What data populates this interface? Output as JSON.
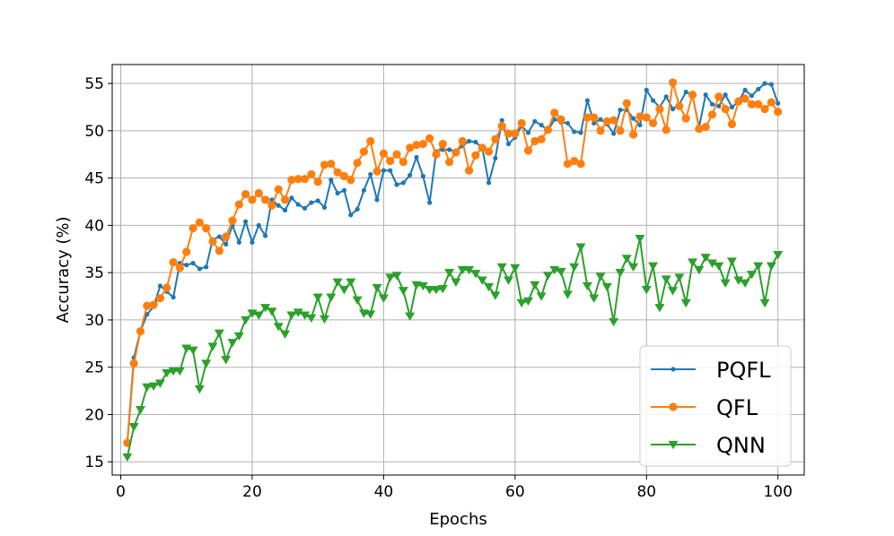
{
  "chart_data": {
    "type": "line",
    "title": "",
    "xlabel": "Epochs",
    "ylabel": "Accuracy (%)",
    "xlim": [
      -1.3,
      104.0
    ],
    "ylim": [
      13.6,
      57.0
    ],
    "xticks": [
      0,
      20,
      40,
      60,
      80,
      100
    ],
    "yticks": [
      15,
      20,
      25,
      30,
      35,
      40,
      45,
      50,
      55
    ],
    "grid": true,
    "legend_position": "lower-right",
    "x": [
      1,
      2,
      3,
      4,
      5,
      6,
      7,
      8,
      9,
      10,
      11,
      12,
      13,
      14,
      15,
      16,
      17,
      18,
      19,
      20,
      21,
      22,
      23,
      24,
      25,
      26,
      27,
      28,
      29,
      30,
      31,
      32,
      33,
      34,
      35,
      36,
      37,
      38,
      39,
      40,
      41,
      42,
      43,
      44,
      45,
      46,
      47,
      48,
      49,
      50,
      51,
      52,
      53,
      54,
      55,
      56,
      57,
      58,
      59,
      60,
      61,
      62,
      63,
      64,
      65,
      66,
      67,
      68,
      69,
      70,
      71,
      72,
      73,
      74,
      75,
      76,
      77,
      78,
      79,
      80,
      81,
      82,
      83,
      84,
      85,
      86,
      87,
      88,
      89,
      90,
      91,
      92,
      93,
      94,
      95,
      96,
      97,
      98,
      99,
      100
    ],
    "series": [
      {
        "name": "PQFL",
        "color": "#1f77b4",
        "marker": "dot",
        "values": [
          17.0,
          26.0,
          28.8,
          30.6,
          31.4,
          33.6,
          33.0,
          32.4,
          36.0,
          35.8,
          36.0,
          35.4,
          35.6,
          38.5,
          38.8,
          38.0,
          40.0,
          38.2,
          40.4,
          38.2,
          40.0,
          38.9,
          42.7,
          42.1,
          41.6,
          42.9,
          42.2,
          41.8,
          42.4,
          42.6,
          41.9,
          44.8,
          43.4,
          43.7,
          41.1,
          41.7,
          43.7,
          45.4,
          42.7,
          45.8,
          45.8,
          44.3,
          44.5,
          45.3,
          47.2,
          45.2,
          42.4,
          47.8,
          48.0,
          48.0,
          47.8,
          48.4,
          48.9,
          48.8,
          48.2,
          44.5,
          47.1,
          51.1,
          48.6,
          49.3,
          50.5,
          49.8,
          51.0,
          50.6,
          50.0,
          51.2,
          50.9,
          50.8,
          49.9,
          49.8,
          53.2,
          50.8,
          51.2,
          50.7,
          49.7,
          52.2,
          52.2,
          51.3,
          50.6,
          54.3,
          53.2,
          52.5,
          53.6,
          52.3,
          52.8,
          54.1,
          53.7,
          50.4,
          53.8,
          52.8,
          52.6,
          53.8,
          52.5,
          53.1,
          54.3,
          53.7,
          54.4,
          55.0,
          54.9,
          52.9
        ]
      },
      {
        "name": "QFL",
        "color": "#ff7f0e",
        "marker": "circle",
        "values": [
          17.0,
          25.4,
          28.8,
          31.5,
          31.6,
          32.3,
          33.4,
          36.1,
          35.5,
          37.2,
          39.7,
          40.3,
          39.7,
          38.3,
          37.3,
          38.8,
          40.5,
          42.2,
          43.3,
          42.7,
          43.4,
          42.7,
          42.1,
          43.8,
          42.7,
          44.8,
          44.9,
          44.9,
          45.4,
          44.6,
          46.4,
          46.5,
          45.6,
          45.2,
          44.8,
          46.6,
          47.8,
          48.9,
          45.7,
          47.6,
          46.8,
          47.5,
          46.7,
          48.2,
          48.5,
          48.6,
          49.2,
          47.5,
          48.6,
          46.7,
          47.7,
          48.9,
          45.8,
          47.4,
          48.2,
          47.8,
          49.1,
          50.5,
          49.7,
          49.7,
          50.8,
          47.9,
          48.9,
          49.1,
          50.1,
          51.9,
          51.2,
          46.5,
          46.8,
          46.5,
          51.4,
          51.4,
          50.0,
          51.0,
          51.1,
          50.0,
          52.9,
          49.6,
          51.5,
          51.4,
          50.8,
          52.3,
          50.1,
          55.1,
          52.6,
          51.3,
          53.8,
          50.2,
          50.4,
          51.7,
          53.6,
          52.3,
          50.7,
          53.1,
          53.4,
          52.8,
          52.8,
          52.3,
          53.0,
          52.0
        ]
      },
      {
        "name": "QNN",
        "color": "#2ca02c",
        "marker": "triangle-down",
        "values": [
          15.5,
          18.7,
          20.5,
          22.9,
          23.0,
          23.3,
          24.4,
          24.6,
          24.6,
          27.0,
          26.8,
          22.7,
          25.4,
          27.2,
          28.6,
          25.8,
          27.6,
          28.3,
          30.0,
          30.7,
          30.5,
          31.3,
          30.9,
          29.3,
          28.5,
          30.5,
          30.8,
          30.5,
          30.2,
          32.4,
          30.1,
          32.4,
          34.0,
          33.2,
          34.0,
          32.1,
          30.7,
          30.6,
          33.4,
          32.3,
          34.5,
          34.7,
          33.1,
          30.4,
          33.7,
          33.6,
          33.2,
          33.2,
          33.3,
          35.0,
          34.0,
          35.3,
          35.3,
          34.9,
          34.2,
          33.5,
          32.6,
          35.6,
          34.2,
          35.5,
          31.8,
          32.0,
          33.7,
          32.5,
          34.7,
          35.3,
          35.1,
          32.7,
          35.6,
          37.7,
          33.6,
          32.3,
          34.6,
          33.5,
          29.8,
          35.0,
          36.5,
          35.6,
          38.6,
          33.2,
          35.7,
          31.3,
          34.3,
          33.1,
          34.5,
          31.8,
          36.1,
          35.3,
          36.6,
          36.0,
          35.7,
          33.9,
          36.2,
          34.2,
          33.9,
          34.8,
          35.7,
          31.8,
          35.7,
          36.9
        ]
      }
    ]
  }
}
